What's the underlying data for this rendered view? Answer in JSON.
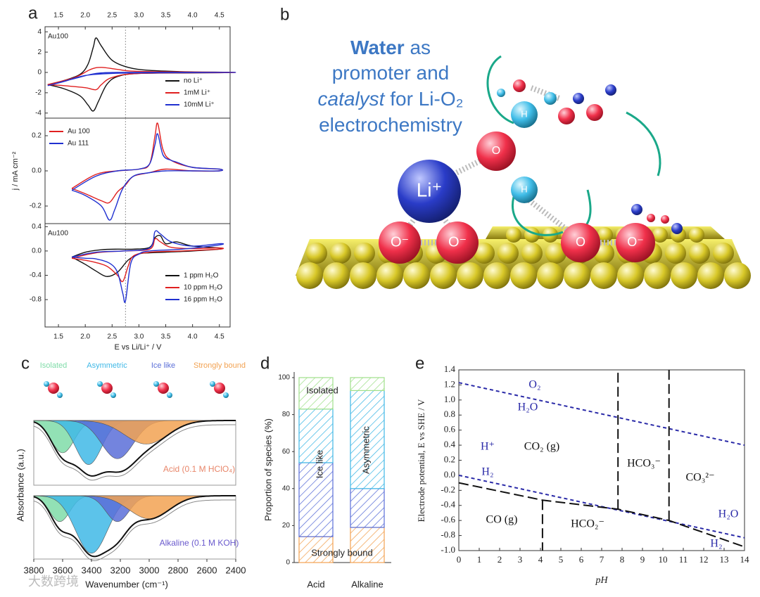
{
  "panels": [
    "a",
    "b",
    "c",
    "d",
    "e"
  ],
  "illustration": {
    "headline": [
      [
        "Water",
        " as"
      ],
      [
        "promoter and"
      ],
      [
        "catalyst",
        " for Li-O₂"
      ],
      [
        "electrochemistry"
      ]
    ],
    "atom_labels": [
      "Li⁺",
      "O⁻",
      "O⁻",
      "O",
      "O⁻",
      "H",
      "O",
      "H"
    ]
  },
  "watermark": "大数跨境",
  "chart_data": [
    {
      "type": "line",
      "label": "Au100",
      "xlim": [
        1.25,
        4.7
      ],
      "ylim": [
        -4.5,
        4.5
      ],
      "xticks": [
        1.5,
        {
          "value": 2,
          "label": "2.0"
        },
        2.5,
        {
          "value": 3,
          "label": "3.0"
        },
        3.5,
        {
          "value": 4,
          "label": "4.0"
        },
        4.5
      ],
      "yticks": [
        4,
        2,
        0,
        -2,
        -4
      ],
      "reference_x": 2.75,
      "legend": "right",
      "series": [
        {
          "name": "no Li⁺",
          "color": "#111111",
          "x": [
            1.3,
            1.6,
            1.9,
            2.05,
            2.15,
            2.2,
            2.3,
            2.5,
            2.8,
            3.2,
            4.0,
            4.6,
            4.6,
            4.0,
            3.0,
            2.6,
            2.4,
            2.25,
            2.15,
            2.05,
            1.9,
            1.6,
            1.3
          ],
          "values": [
            -1.2,
            -0.8,
            -0.2,
            0.8,
            2.5,
            3.4,
            2.6,
            1.2,
            0.5,
            0.2,
            0.05,
            0.02,
            -0.02,
            -0.05,
            -0.1,
            -0.4,
            -1.2,
            -2.8,
            -3.8,
            -3.2,
            -2.3,
            -1.6,
            -1.2
          ]
        },
        {
          "name": "1mM Li⁺",
          "color": "#e02020",
          "x": [
            1.3,
            1.8,
            2.1,
            2.3,
            2.6,
            3.0,
            4.6,
            4.6,
            3.0,
            2.5,
            2.3,
            2.2,
            2.0,
            1.6,
            1.3
          ],
          "values": [
            -1.2,
            -0.5,
            0.3,
            0.5,
            0.3,
            0.1,
            0.02,
            -0.02,
            -0.1,
            -0.5,
            -1.2,
            -1.7,
            -1.5,
            -1.3,
            -1.2
          ]
        },
        {
          "name": "10mM Li⁺",
          "color": "#2030d0",
          "x": [
            1.3,
            1.8,
            2.2,
            2.6,
            3.0,
            4.6,
            4.6,
            3.0,
            2.5,
            2.0,
            1.6,
            1.3
          ],
          "values": [
            -1.3,
            -0.6,
            -0.1,
            0.0,
            0.0,
            0.0,
            0.0,
            -0.05,
            -0.1,
            -0.3,
            -0.9,
            -1.3
          ]
        }
      ]
    },
    {
      "type": "line",
      "ylabel": "j / mA cm⁻²",
      "xlim": [
        1.25,
        4.7
      ],
      "ylim": [
        -0.3,
        0.3
      ],
      "yticks": [
        0.2,
        {
          "value": 0,
          "label": "0.0"
        },
        -0.2
      ],
      "reference_x": 2.75,
      "legend": "upper left",
      "series": [
        {
          "name": "Au 100",
          "color": "#e02020",
          "x": [
            1.75,
            2.2,
            2.6,
            3.0,
            3.2,
            3.3,
            3.35,
            3.45,
            3.6,
            4.0,
            4.5,
            4.5,
            4.0,
            3.5,
            3.2,
            2.9,
            2.75,
            2.6,
            2.45,
            2.3,
            2.0,
            1.75
          ],
          "values": [
            -0.1,
            -0.02,
            0.0,
            0.01,
            0.04,
            0.2,
            0.27,
            0.12,
            0.06,
            0.02,
            0.01,
            0.0,
            0.0,
            0.01,
            -0.01,
            -0.03,
            -0.08,
            -0.12,
            -0.18,
            -0.17,
            -0.13,
            -0.1
          ]
        },
        {
          "name": "Au 111",
          "color": "#2030d0",
          "x": [
            1.75,
            2.2,
            2.6,
            3.0,
            3.2,
            3.3,
            3.35,
            3.45,
            3.6,
            3.7,
            4.0,
            4.5,
            4.5,
            4.0,
            3.5,
            3.2,
            2.9,
            2.7,
            2.55,
            2.45,
            2.3,
            2.0,
            1.75
          ],
          "values": [
            -0.11,
            -0.03,
            0.0,
            0.01,
            0.04,
            0.15,
            0.21,
            0.09,
            0.06,
            0.05,
            0.02,
            0.01,
            0.0,
            0.0,
            0.0,
            -0.01,
            -0.03,
            -0.1,
            -0.22,
            -0.28,
            -0.2,
            -0.14,
            -0.11
          ]
        }
      ]
    },
    {
      "type": "line",
      "label": "Au100",
      "xlabel": "E vs Li/Li⁺ / V",
      "xlim": [
        1.25,
        4.7
      ],
      "ylim": [
        -1.25,
        0.45
      ],
      "xticks": [
        1.5,
        {
          "value": 2,
          "label": "2.0"
        },
        2.5,
        {
          "value": 3,
          "label": "3.0"
        },
        3.5,
        {
          "value": 4,
          "label": "4.0"
        },
        4.5
      ],
      "yticks": [
        0.4,
        {
          "value": 0,
          "label": "0.0"
        },
        -0.4,
        -0.8
      ],
      "reference_x": 2.75,
      "legend": "lower right",
      "series": [
        {
          "name": "1 ppm H₂O",
          "color": "#111111",
          "x": [
            1.75,
            2.0,
            2.3,
            2.6,
            2.9,
            3.2,
            3.3,
            3.4,
            3.5,
            3.7,
            4.0,
            4.5,
            4.5,
            4.0,
            3.5,
            3.2,
            3.0,
            2.8,
            2.6,
            2.4,
            2.2,
            2.0,
            1.75
          ],
          "values": [
            -0.1,
            -0.02,
            0.02,
            0.03,
            0.03,
            0.06,
            0.22,
            0.25,
            0.12,
            0.15,
            0.08,
            0.05,
            0.03,
            0.0,
            -0.02,
            -0.03,
            -0.05,
            -0.15,
            -0.35,
            -0.42,
            -0.33,
            -0.22,
            -0.1
          ]
        },
        {
          "name": "10 ppm H₂O",
          "color": "#e02020",
          "x": [
            1.75,
            2.2,
            2.7,
            3.2,
            3.3,
            3.4,
            3.6,
            4.0,
            4.5,
            4.5,
            3.8,
            3.2,
            2.9,
            2.8,
            2.7,
            2.6,
            2.4,
            2.1,
            1.75
          ],
          "values": [
            -0.12,
            -0.03,
            0.0,
            0.03,
            0.2,
            0.15,
            0.06,
            0.04,
            0.05,
            0.03,
            0.0,
            -0.02,
            -0.08,
            -0.25,
            -0.5,
            -0.4,
            -0.25,
            -0.17,
            -0.12
          ]
        },
        {
          "name": "16 ppm H₂O",
          "color": "#2030d0",
          "x": [
            1.75,
            2.2,
            2.7,
            3.2,
            3.3,
            3.4,
            3.6,
            4.0,
            4.5,
            4.5,
            3.8,
            3.2,
            3.0,
            2.85,
            2.75,
            2.7,
            2.6,
            2.45,
            2.2,
            2.0,
            1.75
          ],
          "values": [
            -0.1,
            -0.02,
            0.0,
            0.05,
            0.32,
            0.28,
            0.15,
            0.08,
            0.12,
            0.1,
            0.03,
            0.0,
            -0.05,
            -0.2,
            -0.82,
            -0.7,
            -0.35,
            -0.2,
            -0.13,
            -0.12,
            -0.1
          ]
        }
      ]
    },
    {
      "type": "spectrum",
      "ylabel": "Absorbance (a.u.)",
      "xlim": [
        3800,
        2400
      ],
      "ylim": [
        0,
        1.1
      ],
      "annotation": {
        "text": "Acid (0.1 M HClO₄)",
        "color": "#e8866a"
      },
      "components": [
        {
          "name": "Isolated",
          "color": "#7fdca8",
          "center": 3600,
          "height": 0.55,
          "width": 80
        },
        {
          "name": "Asymmetric",
          "color": "#3fb8e6",
          "center": 3420,
          "height": 0.75,
          "width": 90
        },
        {
          "name": "Ice like",
          "color": "#5b6fd8",
          "center": 3220,
          "height": 0.65,
          "width": 110
        },
        {
          "name": "Strongly bound",
          "color": "#f2a252",
          "center": 3020,
          "height": 0.4,
          "width": 150
        }
      ]
    },
    {
      "type": "spectrum",
      "xlabel": "Wavenumber (cm⁻¹)",
      "xlim": [
        3800,
        2400
      ],
      "ylim": [
        0,
        1.1
      ],
      "xticks": [
        3800,
        3600,
        3400,
        3200,
        3000,
        2800,
        2600,
        2400
      ],
      "annotation": {
        "text": "Alkaline (0.1 M KOH)",
        "color": "#6a5acd"
      },
      "components": [
        {
          "color": "#7fdca8",
          "center": 3620,
          "height": 0.45,
          "width": 70
        },
        {
          "color": "#3fb8e6",
          "center": 3400,
          "height": 1.0,
          "width": 110
        },
        {
          "color": "#5b6fd8",
          "center": 3220,
          "height": 0.45,
          "width": 80
        },
        {
          "color": "#f2a252",
          "center": 3000,
          "height": 0.4,
          "width": 140
        }
      ]
    },
    {
      "type": "bar",
      "stacked": true,
      "ylabel": "Proportion of species (%)",
      "categories": [
        "Acid",
        "Alkaline"
      ],
      "ylim": [
        0,
        100
      ],
      "yticks": [
        0,
        20,
        40,
        60,
        80,
        100
      ],
      "series": [
        {
          "name": "Strongly bound",
          "color": "#f2a252",
          "values": [
            14,
            19
          ]
        },
        {
          "name": "Ice like",
          "color": "#5b6fd8",
          "values": [
            40,
            21
          ]
        },
        {
          "name": "Asymmetric",
          "color": "#3fb8e6",
          "values": [
            29,
            53
          ]
        },
        {
          "name": "Isolated",
          "color": "#9fe08a",
          "values": [
            17,
            7
          ]
        }
      ]
    },
    {
      "type": "line",
      "xlabel": "pH",
      "ylabel": "Electrode potential, E vs SHE / V",
      "xlim": [
        0,
        14
      ],
      "ylim": [
        -1.0,
        1.4
      ],
      "xticks": [
        0,
        1,
        2,
        3,
        4,
        5,
        6,
        7,
        8,
        9,
        10,
        11,
        12,
        13,
        14
      ],
      "yticks": [
        1.4,
        1.2,
        {
          "value": 1,
          "label": "1.0"
        },
        0.8,
        0.6,
        0.4,
        0.2,
        {
          "value": 0,
          "label": "0.0"
        },
        -0.2,
        -0.4,
        -0.6,
        -0.8,
        {
          "value": -1,
          "label": "-1.0"
        }
      ],
      "series": [
        {
          "color": "#2a2aa8",
          "dash": "short",
          "x": [
            0,
            14
          ],
          "values": [
            1.23,
            0.4
          ]
        },
        {
          "color": "#2a2aa8",
          "dash": "short",
          "x": [
            0,
            14
          ],
          "values": [
            0,
            -0.83
          ]
        },
        {
          "color": "#111111",
          "dash": "long",
          "x": [
            0,
            4.1,
            7.8,
            10.3,
            14
          ],
          "values": [
            -0.1,
            -0.33,
            -0.45,
            -0.6,
            -0.95
          ]
        },
        {
          "color": "#111111",
          "dash": "long",
          "x": [
            4.1,
            4.1
          ],
          "values": [
            -0.33,
            -1.0
          ]
        },
        {
          "color": "#111111",
          "dash": "long",
          "x": [
            7.8,
            7.8
          ],
          "values": [
            -0.45,
            1.4
          ]
        },
        {
          "color": "#111111",
          "dash": "long",
          "x": [
            10.3,
            10.3
          ],
          "values": [
            -0.6,
            1.4
          ]
        }
      ],
      "annotations": [
        {
          "text": "O₂",
          "color": "#2a2aa8"
        },
        {
          "text": "H₂O",
          "color": "#2a2aa8"
        },
        {
          "text": "H⁺",
          "color": "#2a2aa8"
        },
        {
          "text": "H₂",
          "color": "#2a2aa8"
        },
        {
          "text": "CO₂ (g)",
          "color": "#111111"
        },
        {
          "text": "HCO₃⁻",
          "color": "#111111"
        },
        {
          "text": "CO₃²⁻",
          "color": "#111111"
        },
        {
          "text": "H₂O",
          "color": "#2a2aa8"
        },
        {
          "text": "CO (g)",
          "color": "#111111"
        },
        {
          "text": "HCO₂⁻",
          "color": "#111111"
        },
        {
          "text": "H₂",
          "color": "#2a2aa8"
        }
      ]
    }
  ]
}
